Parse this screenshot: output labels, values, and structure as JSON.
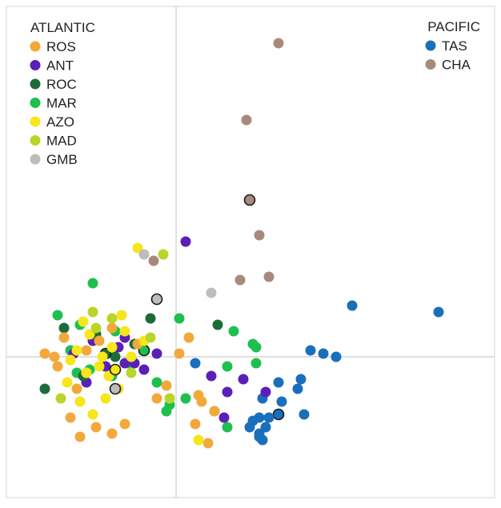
{
  "chart_data": {
    "type": "scatter",
    "title": "",
    "xlabel": "",
    "ylabel": "",
    "xlim": [
      -1.0,
      1.0
    ],
    "ylim": [
      -1.0,
      1.0
    ],
    "grid": false,
    "axes_lines": "crosshair at origin",
    "legend_groups": [
      {
        "title": "ATLANTIC",
        "placement": "top-left",
        "entries": [
          {
            "label": "ROS",
            "color": "#f2a93b"
          },
          {
            "label": "ANT",
            "color": "#5b1fb8"
          },
          {
            "label": "ROC",
            "color": "#1e6b3a"
          },
          {
            "label": "MAR",
            "color": "#1fbf4f"
          },
          {
            "label": "AZO",
            "color": "#f6e61a"
          },
          {
            "label": "MAD",
            "color": "#b9d52a"
          },
          {
            "label": "GMB",
            "color": "#bdbdbd"
          }
        ]
      },
      {
        "title": "PACIFIC",
        "placement": "top-right",
        "entries": [
          {
            "label": "TAS",
            "color": "#1a6fbd"
          },
          {
            "label": "CHA",
            "color": "#a88a7c"
          }
        ]
      }
    ],
    "series": [
      {
        "name": "CHA",
        "color": "#a88a7c",
        "x": [
          0.32,
          0.22,
          0.23,
          0.26,
          -0.07,
          0.2,
          0.29
        ],
        "y": [
          0.98,
          0.74,
          0.49,
          0.38,
          0.3,
          0.24,
          0.25
        ],
        "outlined": [
          false,
          false,
          true,
          false,
          false,
          false,
          false
        ]
      },
      {
        "name": "TAS",
        "color": "#1a6fbd",
        "x": [
          0.55,
          0.82,
          0.42,
          0.46,
          0.5,
          0.39,
          0.32,
          0.38,
          0.27,
          0.26,
          0.32,
          0.24,
          0.28,
          0.27,
          0.4,
          0.29,
          0.23,
          0.26,
          0.26,
          0.33,
          0.06
        ],
        "y": [
          0.16,
          0.14,
          0.02,
          0.01,
          0.0,
          -0.07,
          -0.08,
          -0.1,
          -0.13,
          -0.19,
          -0.18,
          -0.2,
          -0.22,
          -0.26,
          -0.18,
          -0.19,
          -0.22,
          -0.24,
          -0.25,
          -0.14,
          -0.02
        ],
        "outlined": [
          false,
          false,
          false,
          false,
          false,
          false,
          false,
          false,
          false,
          false,
          true,
          false,
          false,
          false,
          false,
          false,
          false,
          false,
          false,
          false,
          false
        ]
      },
      {
        "name": "MAR",
        "color": "#1fbf4f",
        "x": [
          -0.26,
          -0.37,
          -0.3,
          -0.19,
          0.01,
          0.24,
          0.25,
          0.12,
          0.18,
          0.25,
          0.03,
          -0.03,
          -0.06,
          -0.02,
          -0.33,
          -0.31,
          0.16,
          0.16,
          -0.27,
          -0.15,
          -0.2,
          -0.1
        ],
        "y": [
          0.23,
          0.13,
          0.1,
          0.08,
          0.12,
          0.04,
          -0.02,
          -0.17,
          0.08,
          0.03,
          -0.13,
          -0.17,
          -0.08,
          -0.15,
          0.02,
          -0.05,
          -0.03,
          -0.22,
          -0.04,
          -0.02,
          -0.06,
          0.02
        ],
        "outlined": [
          false,
          false,
          false,
          false,
          false,
          false,
          false,
          false,
          false,
          false,
          false,
          false,
          false,
          false,
          false,
          false,
          false,
          false,
          false,
          false,
          false,
          true
        ]
      },
      {
        "name": "ANT",
        "color": "#5b1fb8",
        "x": [
          0.03,
          0.11,
          0.16,
          0.28,
          0.15,
          0.21,
          -0.1,
          -0.16,
          -0.18,
          -0.22,
          -0.28,
          -0.32,
          -0.26,
          -0.13,
          -0.06,
          -0.16
        ],
        "y": [
          0.36,
          -0.06,
          -0.11,
          -0.11,
          -0.19,
          -0.07,
          -0.04,
          -0.02,
          0.03,
          -0.03,
          -0.08,
          0.01,
          0.05,
          -0.02,
          0.01,
          0.06
        ],
        "outlined": [
          false,
          false,
          false,
          false,
          false,
          false,
          false,
          false,
          false,
          false,
          false,
          false,
          false,
          false,
          false,
          false
        ]
      },
      {
        "name": "ROC",
        "color": "#1e6b3a",
        "x": [
          0.13,
          -0.08,
          -0.41,
          -0.35,
          -0.29,
          -0.25,
          -0.19,
          -0.13,
          -0.22
        ],
        "y": [
          0.1,
          0.12,
          -0.1,
          0.09,
          -0.06,
          0.07,
          0.0,
          0.04,
          0.01
        ],
        "outlined": [
          false,
          false,
          false,
          false,
          false,
          false,
          false,
          false,
          true
        ]
      },
      {
        "name": "ROS",
        "color": "#f2a93b",
        "x": [
          0.08,
          0.12,
          0.06,
          0.1,
          -0.06,
          -0.03,
          -0.16,
          -0.2,
          -0.25,
          -0.3,
          -0.33,
          -0.37,
          -0.38,
          -0.41,
          -0.35,
          -0.28,
          -0.2,
          -0.12,
          0.01,
          0.04,
          -0.31,
          -0.28,
          -0.24,
          0.07
        ],
        "y": [
          -0.14,
          -0.17,
          -0.21,
          -0.27,
          -0.13,
          -0.09,
          -0.21,
          -0.24,
          -0.22,
          -0.25,
          -0.19,
          -0.03,
          0.0,
          0.01,
          0.06,
          0.02,
          0.09,
          0.04,
          0.01,
          0.06,
          -0.1,
          -0.05,
          0.05,
          -0.12
        ],
        "outlined": [
          false,
          false,
          false,
          false,
          false,
          false,
          false,
          false,
          false,
          false,
          false,
          false,
          false,
          false,
          false,
          false,
          false,
          false,
          false,
          false,
          false,
          false,
          false,
          false
        ]
      },
      {
        "name": "AZO",
        "color": "#f6e61a",
        "x": [
          -0.12,
          -0.27,
          -0.31,
          -0.28,
          -0.24,
          -0.2,
          -0.16,
          -0.34,
          -0.3,
          -0.22,
          -0.18,
          -0.14,
          -0.1,
          -0.26,
          -0.21,
          -0.29,
          -0.17,
          0.07,
          -0.23,
          -0.19,
          -0.33
        ],
        "y": [
          0.34,
          0.07,
          0.02,
          -0.05,
          -0.03,
          0.03,
          0.08,
          -0.08,
          -0.14,
          -0.13,
          -0.1,
          0.0,
          0.05,
          -0.18,
          -0.06,
          0.11,
          0.13,
          -0.26,
          0.0,
          -0.04,
          -0.01
        ],
        "outlined": [
          false,
          false,
          false,
          false,
          false,
          false,
          false,
          false,
          false,
          false,
          false,
          false,
          false,
          false,
          false,
          false,
          false,
          false,
          false,
          true,
          false
        ]
      },
      {
        "name": "MAD",
        "color": "#b9d52a",
        "x": [
          -0.04,
          -0.02,
          -0.36,
          -0.26,
          -0.2,
          -0.25,
          -0.14,
          -0.08
        ],
        "y": [
          0.32,
          -0.13,
          -0.13,
          0.14,
          0.12,
          0.09,
          -0.05,
          0.06
        ],
        "outlined": [
          false,
          false,
          false,
          false,
          false,
          false,
          false,
          false
        ]
      },
      {
        "name": "GMB",
        "color": "#bdbdbd",
        "x": [
          -0.1,
          0.11,
          -0.06,
          -0.19
        ],
        "y": [
          0.32,
          0.2,
          0.18,
          -0.1
        ],
        "outlined": [
          false,
          false,
          true,
          true
        ]
      }
    ]
  }
}
